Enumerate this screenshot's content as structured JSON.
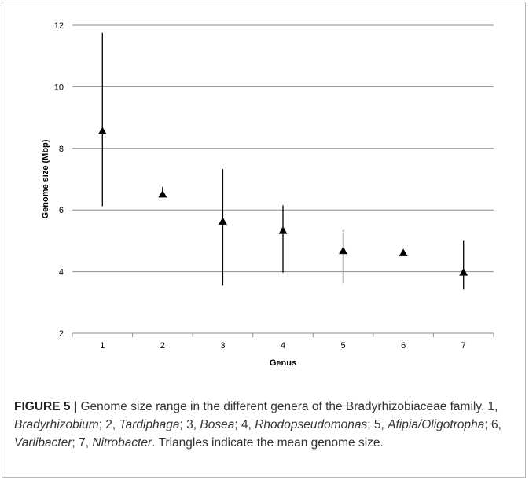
{
  "chart_data": {
    "type": "scatter",
    "title": "",
    "xlabel": "Genus",
    "ylabel": "Genome size (Mbp)",
    "x_ticks": [
      "1",
      "2",
      "3",
      "4",
      "5",
      "6",
      "7"
    ],
    "y_ticks": [
      "2",
      "4",
      "6",
      "8",
      "10",
      "12"
    ],
    "ylim": [
      2,
      12
    ],
    "grid": "horizontal",
    "marker": "triangle",
    "color": "#000000",
    "gridline_color": "#8c8c8c",
    "series": [
      {
        "x": [
          1,
          2,
          3,
          4,
          5,
          6,
          7
        ],
        "mean": [
          8.55,
          6.5,
          5.62,
          5.32,
          4.67,
          4.6,
          3.97
        ],
        "min": [
          6.12,
          6.42,
          3.55,
          3.97,
          3.63,
          4.57,
          3.42
        ],
        "max": [
          11.75,
          6.75,
          7.33,
          6.15,
          5.35,
          4.65,
          5.02
        ]
      }
    ]
  },
  "caption": {
    "label": "FIGURE 5 |",
    "parts": [
      {
        "t": " Genome size range in the different genera of the Bradyrhizobiaceae family. 1, ",
        "i": false
      },
      {
        "t": "Bradyrhizobium",
        "i": true
      },
      {
        "t": "; 2, ",
        "i": false
      },
      {
        "t": "Tardiphaga",
        "i": true
      },
      {
        "t": "; 3, ",
        "i": false
      },
      {
        "t": "Bosea",
        "i": true
      },
      {
        "t": "; 4, ",
        "i": false
      },
      {
        "t": "Rhodopseudomonas",
        "i": true
      },
      {
        "t": "; 5, ",
        "i": false
      },
      {
        "t": "Afipia/Oligotropha",
        "i": true
      },
      {
        "t": "; 6, ",
        "i": false
      },
      {
        "t": "Variibacter",
        "i": true
      },
      {
        "t": "; 7, ",
        "i": false
      },
      {
        "t": "Nitrobacter",
        "i": true
      },
      {
        "t": ". Triangles indicate the mean genome size.",
        "i": false
      }
    ]
  }
}
